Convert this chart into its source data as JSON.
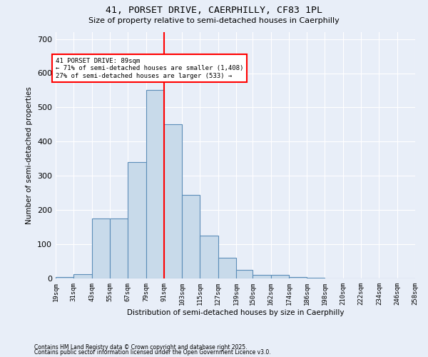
{
  "title1": "41, PORSET DRIVE, CAERPHILLY, CF83 1PL",
  "title2": "Size of property relative to semi-detached houses in Caerphilly",
  "xlabel": "Distribution of semi-detached houses by size in Caerphilly",
  "ylabel": "Number of semi-detached properties",
  "bin_labels": [
    "19sqm",
    "31sqm",
    "43sqm",
    "55sqm",
    "67sqm",
    "79sqm",
    "91sqm",
    "103sqm",
    "115sqm",
    "127sqm",
    "139sqm",
    "150sqm",
    "162sqm",
    "174sqm",
    "186sqm",
    "198sqm",
    "210sqm",
    "222sqm",
    "234sqm",
    "246sqm",
    "258sqm"
  ],
  "bin_edges": [
    19,
    31,
    43,
    55,
    67,
    79,
    91,
    103,
    115,
    127,
    139,
    150,
    162,
    174,
    186,
    198,
    210,
    222,
    234,
    246,
    258
  ],
  "bar_heights": [
    5,
    12,
    175,
    175,
    340,
    550,
    450,
    245,
    125,
    60,
    25,
    10,
    10,
    5,
    2,
    0,
    0,
    0,
    0,
    0
  ],
  "bar_color": "#c8daea",
  "bar_edge_color": "#5b8db8",
  "vline_x": 91,
  "vline_color": "red",
  "annotation_text": "41 PORSET DRIVE: 89sqm\n← 71% of semi-detached houses are smaller (1,408)\n27% of semi-detached houses are larger (533) →",
  "annotation_box_color": "white",
  "annotation_box_edge": "red",
  "ylim": [
    0,
    720
  ],
  "yticks": [
    0,
    100,
    200,
    300,
    400,
    500,
    600,
    700
  ],
  "footer1": "Contains HM Land Registry data © Crown copyright and database right 2025.",
  "footer2": "Contains public sector information licensed under the Open Government Licence v3.0.",
  "bg_color": "#e8eef8",
  "plot_bg_color": "#e8eef8",
  "grid_color": "white"
}
